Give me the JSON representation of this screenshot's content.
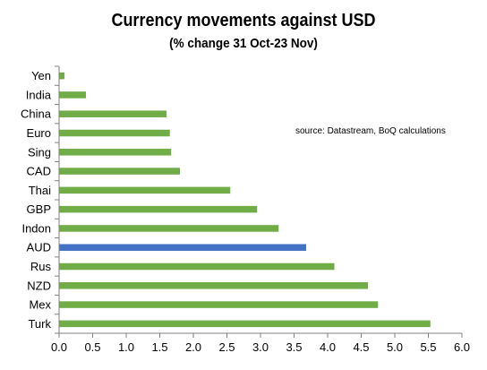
{
  "chart_data": {
    "type": "bar",
    "orientation": "horizontal",
    "title": "Currency movements against USD",
    "subtitle": "(% change 31 Oct-23 Nov)",
    "annotation": "source:  Datastream, BoQ calculations",
    "categories": [
      "Yen",
      "India",
      "China",
      "Euro",
      "Sing",
      "CAD",
      "Thai",
      "GBP",
      "Indon",
      "AUD",
      "Rus",
      "NZD",
      "Mex",
      "Turk"
    ],
    "values": [
      0.08,
      0.4,
      1.6,
      1.65,
      1.67,
      1.8,
      2.55,
      2.95,
      3.27,
      3.68,
      4.1,
      4.6,
      4.75,
      5.53
    ],
    "highlight": "AUD",
    "xlim": [
      0,
      6
    ],
    "xticks": [
      "0.0",
      "0.5",
      "1.0",
      "1.5",
      "2.0",
      "2.5",
      "3.0",
      "3.5",
      "4.0",
      "4.5",
      "5.0",
      "5.5",
      "6.0"
    ],
    "grid": false,
    "colors": {
      "bar": "#70ad47",
      "highlight": "#4472c4"
    }
  }
}
